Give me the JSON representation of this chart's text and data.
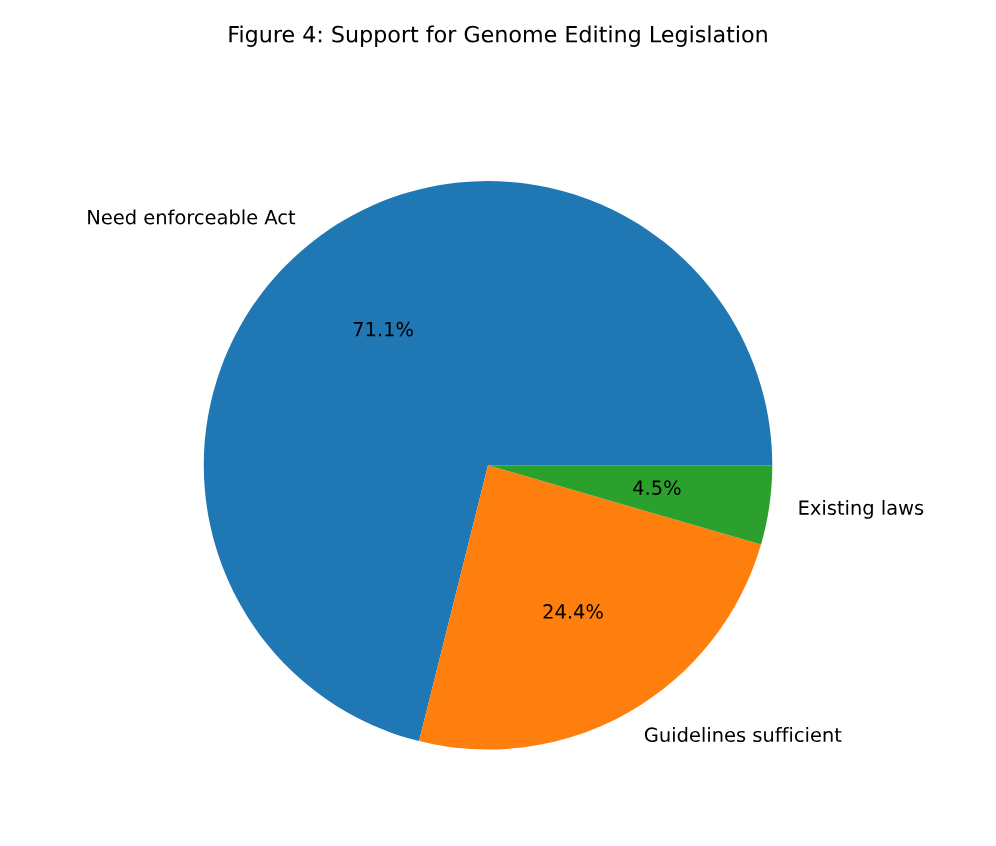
{
  "chart_data": {
    "type": "pie",
    "title": "Figure 4: Support for Genome Editing Legislation",
    "categories": [
      "Need enforceable Act",
      "Guidelines sufficient",
      "Existing laws"
    ],
    "values": [
      71.1,
      24.4,
      4.5
    ],
    "colors": [
      "#1f77b4",
      "#ff7f0e",
      "#2ca02c"
    ],
    "value_labels": [
      "71.1%",
      "24.4%",
      "4.5%"
    ]
  }
}
